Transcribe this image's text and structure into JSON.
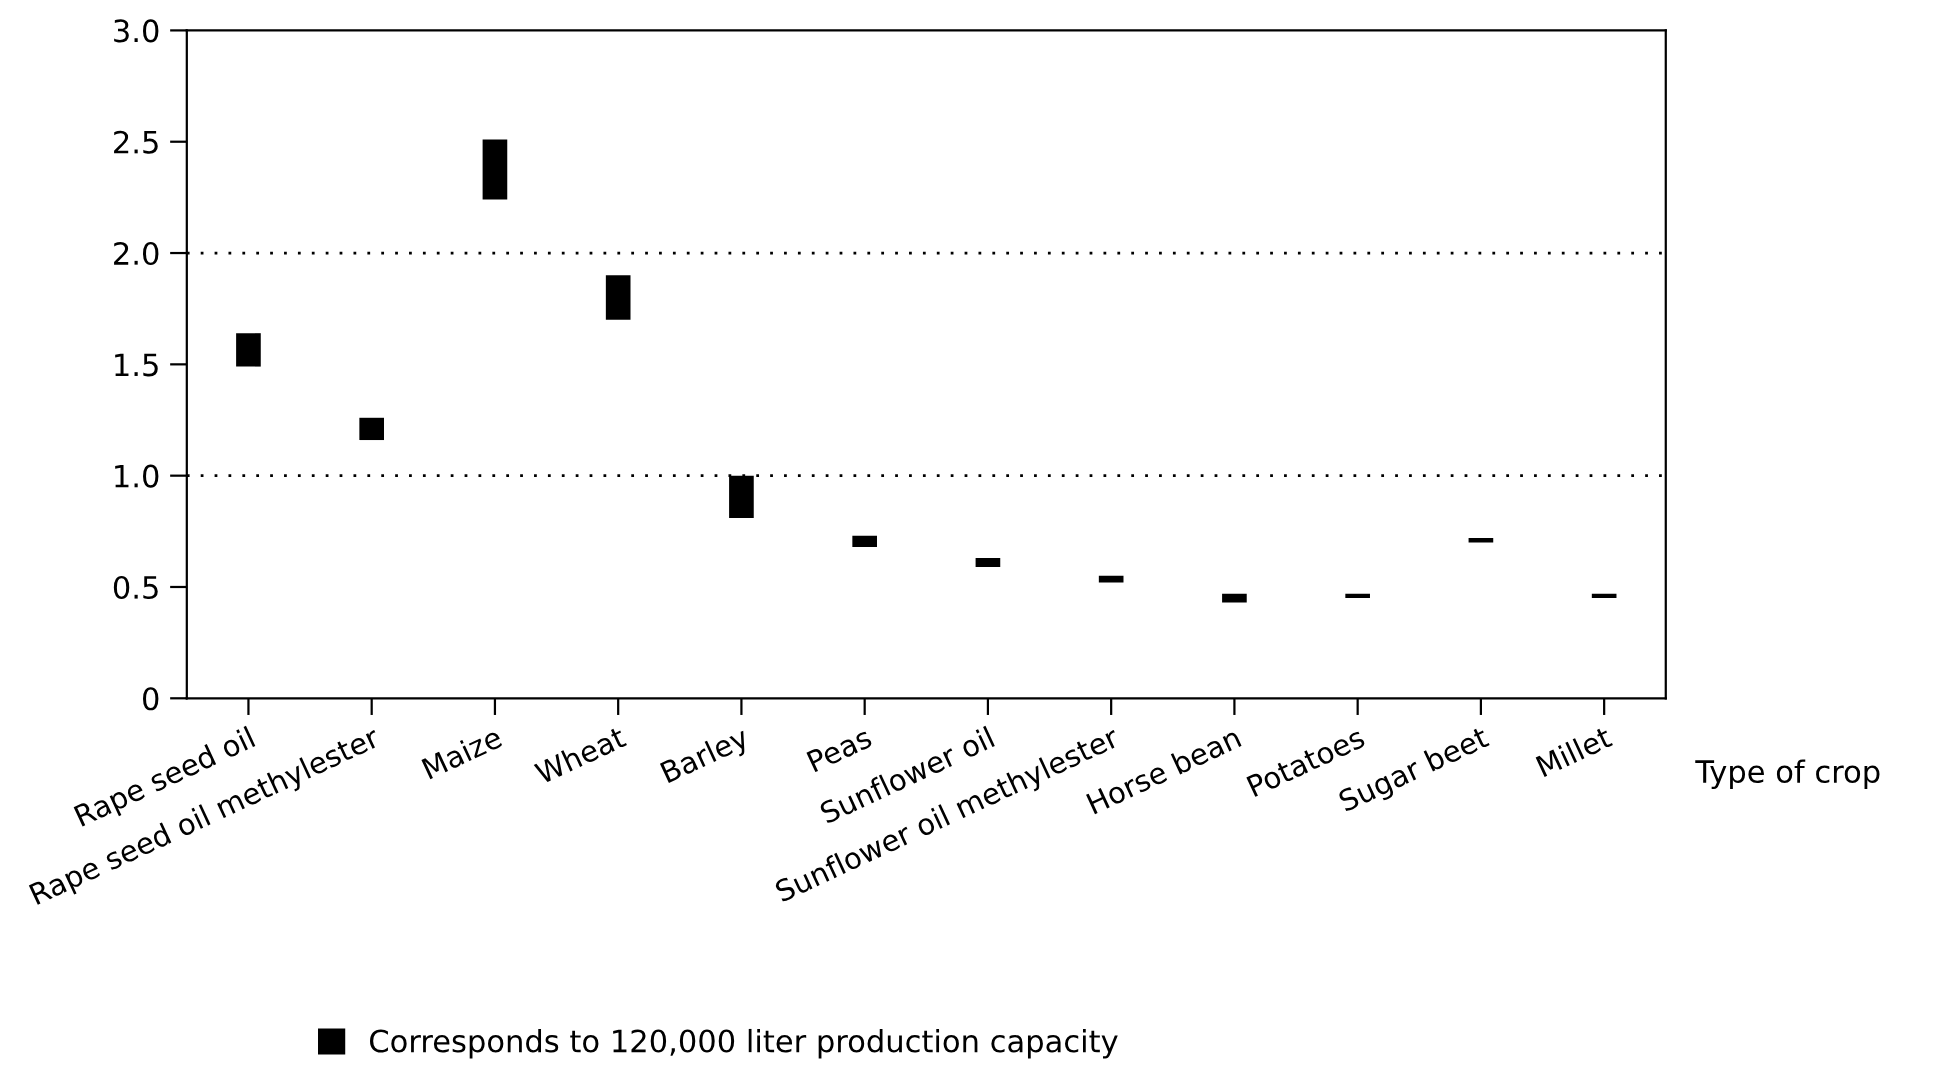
{
  "chart_data": {
    "type": "bar",
    "xlabel": "Type of crop",
    "categories": [
      "Rape seed oil",
      "Rape seed oil methylester",
      "Maize",
      "Wheat",
      "Barley",
      "Peas",
      "Sunflower oil",
      "Sunflower oil methylester",
      "Horse bean",
      "Potatoes",
      "Sugar beet",
      "Millet"
    ],
    "series": [
      {
        "name": "Corresponds to 120,000 liter production capacity",
        "color": "#000000",
        "base": [
          1.49,
          1.16,
          2.24,
          1.7,
          0.81,
          0.68,
          0.59,
          0.52,
          0.43,
          0.45,
          0.7,
          0.45
        ],
        "values": [
          0.15,
          0.1,
          0.27,
          0.2,
          0.19,
          0.05,
          0.04,
          0.03,
          0.04,
          0.02,
          0.02,
          0.02
        ]
      }
    ],
    "ylim": [
      0,
      3
    ],
    "yticks": [
      0,
      0.5,
      {
        "value": 1,
        "label": "1.0"
      },
      1.5,
      {
        "value": 2,
        "label": "2.0"
      },
      2.5,
      {
        "value": 3,
        "label": "3.0"
      }
    ],
    "ref_lines": [
      {
        "axis": "y",
        "value": 1,
        "line_style": "dotted"
      },
      {
        "axis": "y",
        "value": 2,
        "line_style": "dotted"
      }
    ],
    "grid": false,
    "legend": "bottom"
  }
}
